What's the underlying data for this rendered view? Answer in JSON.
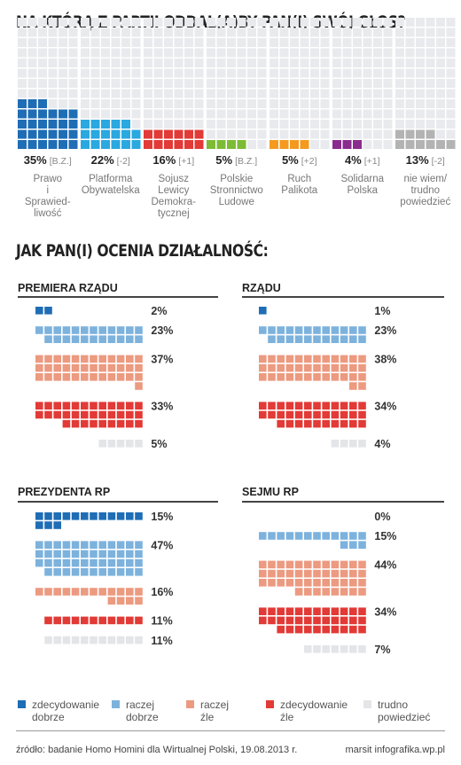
{
  "title1": "NA KTÓRĄ Z PARTII ODDAŁ(A)BY PAN(I) SWÓJ GŁOS?",
  "title2": "JAK PAN(I) OCENIA DZIAŁALNOŚĆ:",
  "chart_data": [
    {
      "type": "bar",
      "parties": [
        {
          "value": 35,
          "value_label": "35%",
          "change": "[B.Z.]",
          "label": [
            "Prawo",
            "i",
            "Sprawied-",
            "liwość"
          ],
          "color": "#1f6db5"
        },
        {
          "value": 22,
          "value_label": "22%",
          "change": "[-2]",
          "label": [
            "Platforma",
            "Obywatelska"
          ],
          "color": "#2aa8e0"
        },
        {
          "value": 16,
          "value_label": "16%",
          "change": "[+1]",
          "label": [
            "Sojusz",
            "Lewicy",
            "Demokra-",
            "tycznej"
          ],
          "color": "#e23a36"
        },
        {
          "value": 5,
          "value_label": "5%",
          "change": "[B.Z.]",
          "label": [
            "Polskie",
            "Stronnictwo",
            "Ludowe"
          ],
          "color": "#7dbb36"
        },
        {
          "value": 5,
          "value_label": "5%",
          "change": "[+2]",
          "label": [
            "Ruch",
            "Palikota"
          ],
          "color": "#f39a1f"
        },
        {
          "value": 4,
          "value_label": "4%",
          "change": "[+1]",
          "label": [
            "Solidarna",
            "Polska"
          ],
          "color": "#8a2b8e"
        },
        {
          "value": 13,
          "value_label": "13%",
          "change": "[-2]",
          "label": [
            "nie wiem/",
            "trudno",
            "powiedzieć"
          ],
          "color": "#b3b3b3"
        }
      ]
    },
    {
      "type": "bar",
      "panels": [
        {
          "title": "PREMIERA RZĄDU",
          "values": [
            2,
            23,
            37,
            33,
            5
          ],
          "labels": [
            "2%",
            "23%",
            "37%",
            "33%",
            "5%"
          ]
        },
        {
          "title": "RZĄDU",
          "values": [
            1,
            23,
            38,
            34,
            4
          ],
          "labels": [
            "1%",
            "23%",
            "38%",
            "34%",
            "4%"
          ]
        },
        {
          "title": "PREZYDENTA RP",
          "values": [
            15,
            47,
            16,
            11,
            11
          ],
          "labels": [
            "15%",
            "47%",
            "16%",
            "11%",
            "11%"
          ]
        },
        {
          "title": "SEJMU RP",
          "values": [
            0,
            15,
            44,
            34,
            7
          ],
          "labels": [
            "0%",
            "15%",
            "44%",
            "34%",
            "7%"
          ]
        }
      ],
      "series_colors": [
        "#1f6db5",
        "#7db2dd",
        "#ec9a80",
        "#e23a36",
        "#e3e5e8"
      ]
    }
  ],
  "legend": [
    {
      "label": "zdecydowanie dobrze",
      "line1": "zdecydowanie",
      "line2": "dobrze",
      "color": "#1f6db5"
    },
    {
      "label": "raczej dobrze",
      "line1": "raczej",
      "line2": "dobrze",
      "color": "#7db2dd"
    },
    {
      "label": "raczej źle",
      "line1": "raczej",
      "line2": "źle",
      "color": "#ec9a80"
    },
    {
      "label": "zdecydowanie źle",
      "line1": "zdecydowanie",
      "line2": "źle",
      "color": "#e23a36"
    },
    {
      "label": "trudno powiedzieć",
      "line1": "trudno",
      "line2": "powiedzieć",
      "color": "#e3e5e8"
    }
  ],
  "footer": {
    "source": "źródło: badanie Homo Homini dla Wirtualnej Polski, 19.08.2013 r.",
    "credit": "marsit infografika.wp.pl"
  }
}
